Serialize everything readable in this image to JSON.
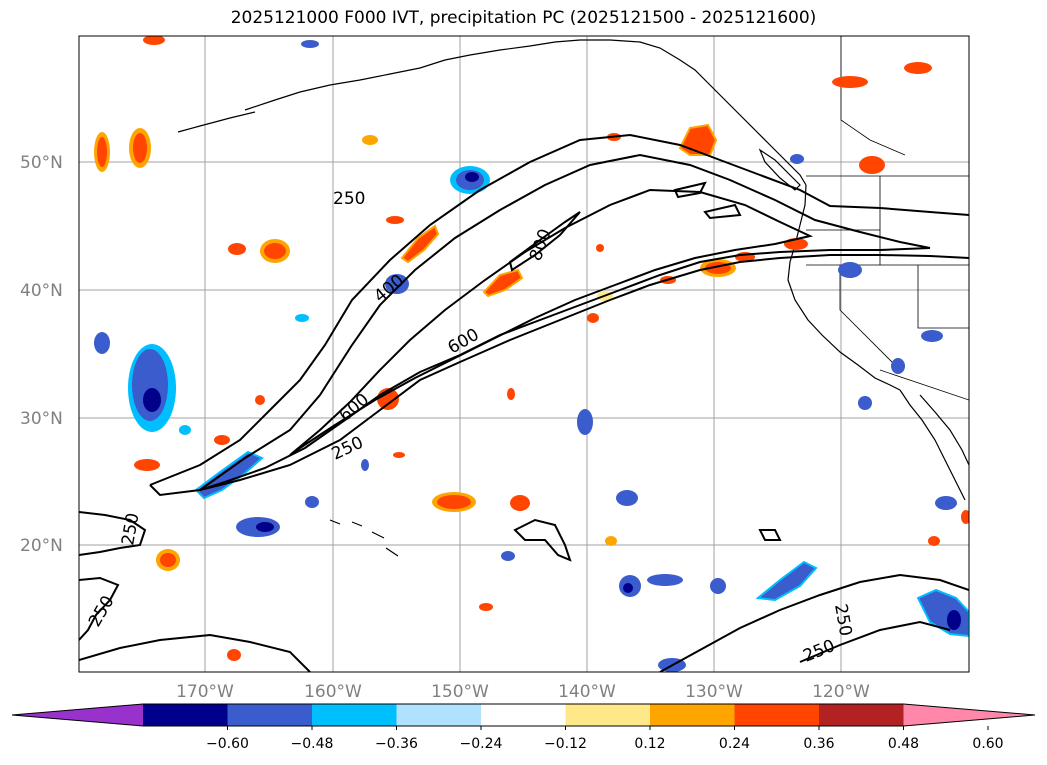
{
  "title": "2025121000 F000 IVT, precipitation PC (2025121500 - 2025121600)",
  "latitude_labels": [
    "50°N",
    "40°N",
    "30°N",
    "20°N"
  ],
  "longitude_labels": [
    "170°W",
    "160°W",
    "150°W",
    "140°W",
    "130°W",
    "120°W"
  ],
  "ivt_contour_labels": [
    "250",
    "400",
    "600",
    "800",
    "600",
    "250",
    "250",
    "250",
    "250"
  ],
  "colorbar": {
    "tick_labels": [
      "−0.60",
      "−0.48",
      "−0.36",
      "−0.24",
      "−0.12",
      "0.12",
      "0.24",
      "0.36",
      "0.48",
      "0.60"
    ],
    "colors": [
      "#9932cc",
      "#00008b",
      "#3a5ccc",
      "#00bfff",
      "#b0e2ff",
      "#ffffff",
      "#ffe88a",
      "#ffa500",
      "#ff4500",
      "#b22222",
      "#ff88aa"
    ]
  },
  "colors": {
    "negative_strong": "#00008b",
    "negative_mid": "#3a5ccc",
    "negative_light": "#00bfff",
    "positive_strong": "#ff4500",
    "positive_mid": "#ffa500",
    "positive_light": "#ffe88a"
  }
}
